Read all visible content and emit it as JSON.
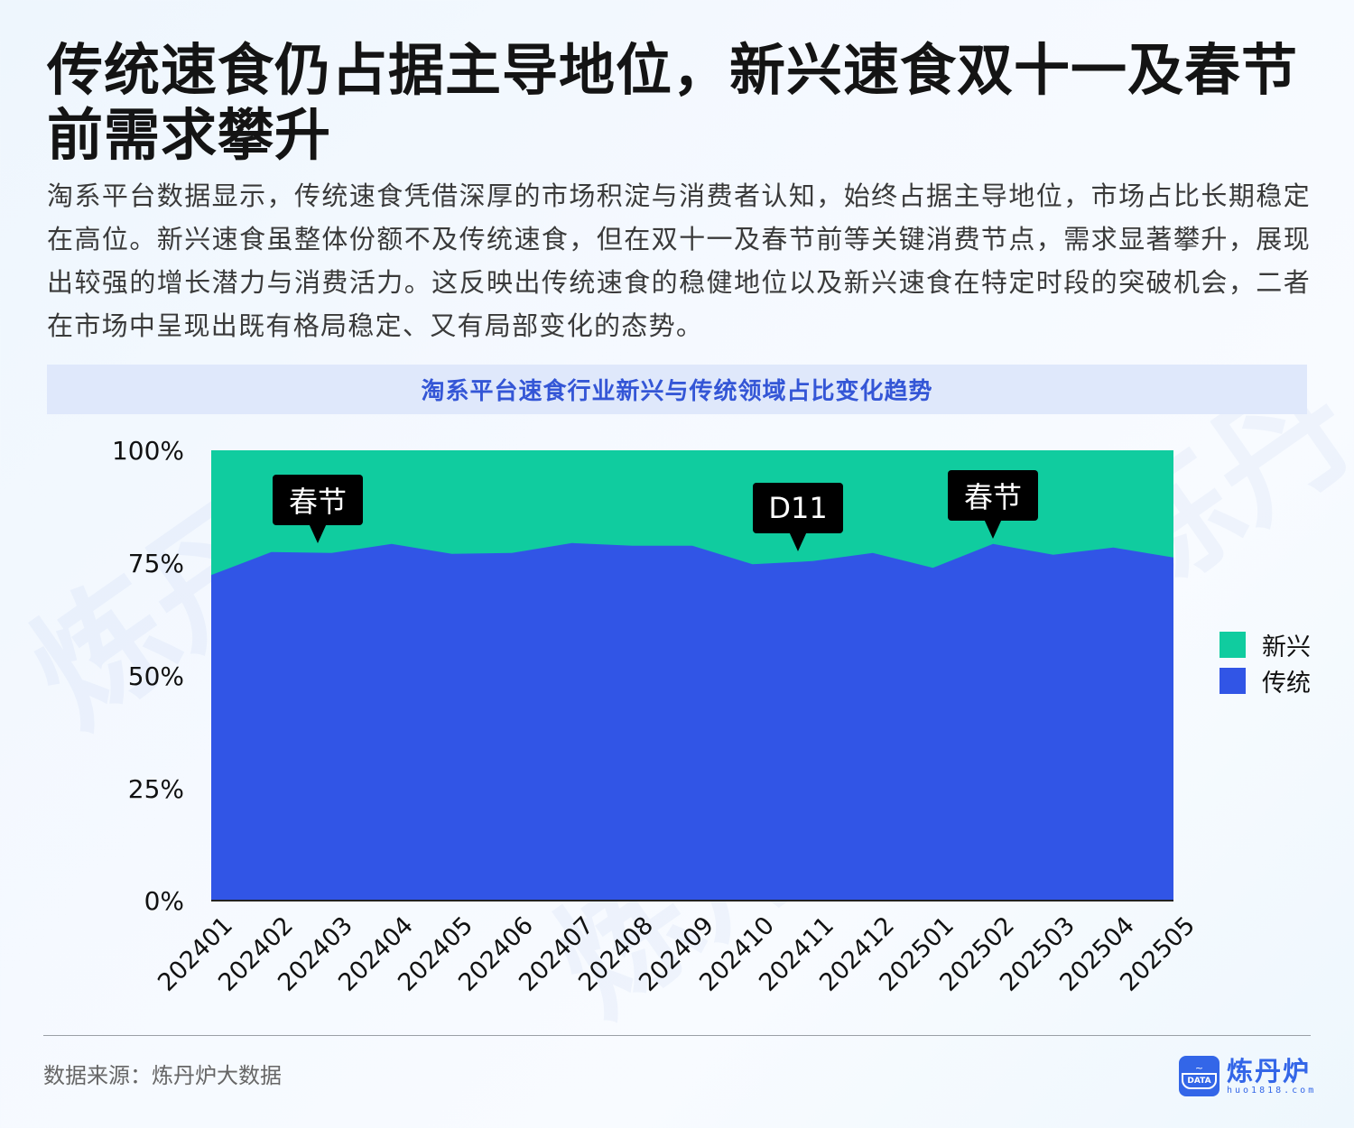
{
  "header": {
    "title": "传统速食仍占据主导地位，新兴速食双十一及春节前需求攀升",
    "description": "淘系平台数据显示，传统速食凭借深厚的市场积淀与消费者认知，始终占据主导地位，市场占比长期稳定在高位。新兴速食虽整体份额不及传统速食，但在双十一及春节前等关键消费节点，需求显著攀升，展现出较强的增长潜力与消费活力。这反映出传统速食的稳健地位以及新兴速食在特定时段的突破机会，二者在市场中呈现出既有格局稳定、又有局部变化的态势。"
  },
  "chart_title": "淘系平台速食行业新兴与传统领域占比变化趋势",
  "colors": {
    "emerging": "#10cc9f",
    "traditional": "#3155e6",
    "accent": "#3456d6",
    "title_bar_bg": "#dfe8fb"
  },
  "chart_data": {
    "type": "area",
    "stacked": true,
    "normalized": true,
    "title": "淘系平台速食行业新兴与传统领域占比变化趋势",
    "xlabel": "",
    "ylabel": "",
    "ylim": [
      0,
      100
    ],
    "yticks": [
      "0%",
      "25%",
      "50%",
      "75%",
      "100%"
    ],
    "categories": [
      "202401",
      "202402",
      "202403",
      "202404",
      "202405",
      "202406",
      "202407",
      "202408",
      "202409",
      "202410",
      "202411",
      "202412",
      "202501",
      "202502",
      "202503",
      "202504",
      "202505"
    ],
    "series": [
      {
        "name": "传统",
        "color": "#3155e6",
        "values": [
          72.3,
          77.4,
          77.2,
          79.2,
          77.0,
          77.2,
          79.4,
          78.8,
          78.8,
          74.7,
          75.4,
          77.2,
          73.9,
          79.2,
          76.8,
          78.4,
          76.2
        ]
      },
      {
        "name": "新兴",
        "color": "#10cc9f",
        "values": [
          27.7,
          22.6,
          22.8,
          20.8,
          23.0,
          22.8,
          20.6,
          21.2,
          21.2,
          25.3,
          24.6,
          22.8,
          26.1,
          20.8,
          23.2,
          21.6,
          23.8
        ]
      }
    ],
    "legend": {
      "position": "right",
      "entries": [
        "新兴",
        "传统"
      ]
    },
    "grid": false,
    "annotations": [
      {
        "label": "春节",
        "category": "202403"
      },
      {
        "label": "D11",
        "category": "202411"
      },
      {
        "label": "春节",
        "category": "202502"
      }
    ]
  },
  "legend": {
    "items": [
      {
        "label": "新兴",
        "color": "#10cc9f"
      },
      {
        "label": "传统",
        "color": "#3155e6"
      }
    ]
  },
  "callouts": [
    {
      "label": "春节"
    },
    {
      "label": "D11"
    },
    {
      "label": "春节"
    }
  ],
  "footer": {
    "source": "数据来源：炼丹炉大数据",
    "logo_name": "炼丹炉",
    "logo_url": "huo1818.com",
    "logo_badge": "DATA"
  }
}
